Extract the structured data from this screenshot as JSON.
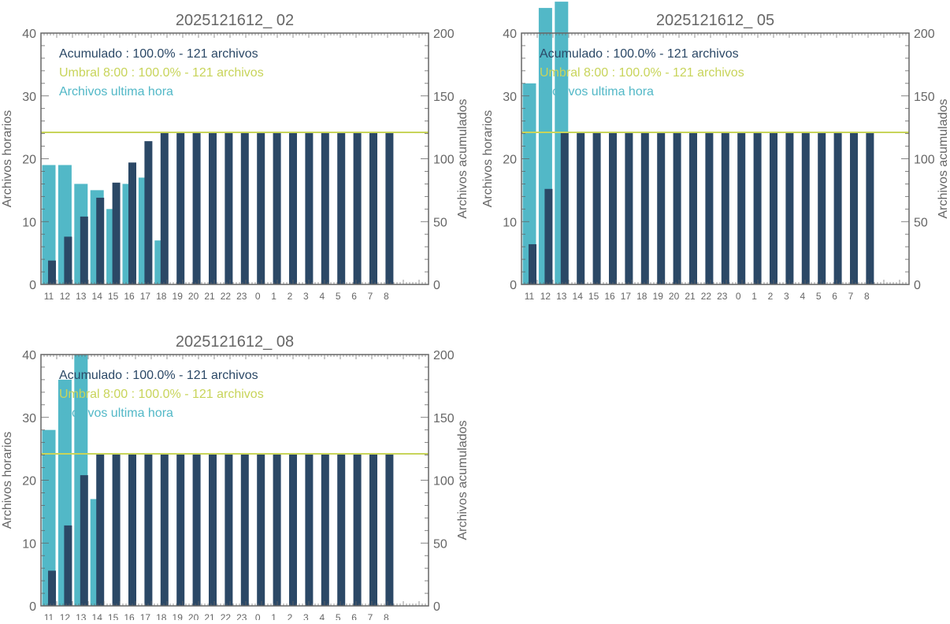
{
  "colors": {
    "hourly": "#52b8c7",
    "cumulative": "#2b4866",
    "threshold": "#c8d45a",
    "axis": "#666666"
  },
  "chart_data": [
    {
      "type": "bar",
      "title": "2025121612_ 02",
      "ylabel": "Archivos horarios",
      "y2label": "Archivos acumulados",
      "ylim": [
        0,
        40
      ],
      "y2lim": [
        0,
        200
      ],
      "yticks": [
        0,
        10,
        20,
        30,
        40
      ],
      "y2ticks": [
        0,
        50,
        100,
        150,
        200
      ],
      "categories": [
        "11",
        "12",
        "13",
        "14",
        "15",
        "16",
        "17",
        "18",
        "19",
        "20",
        "21",
        "22",
        "23",
        "0",
        "1",
        "2",
        "3",
        "4",
        "5",
        "6",
        "7",
        "8"
      ],
      "legend": [
        "Acumulado : 100.0% - 121 archivos",
        "Umbral 8:00 : 100.0% - 121 archivos",
        "Archivos ultima hora"
      ],
      "threshold": 121,
      "series": [
        {
          "name": "Archivos ultima hora",
          "axis": "left",
          "values": [
            19,
            19,
            16,
            15,
            12,
            16,
            17,
            7,
            0,
            0,
            0,
            0,
            0,
            0,
            0,
            0,
            0,
            0,
            0,
            0,
            0,
            0
          ]
        },
        {
          "name": "Acumulado",
          "axis": "right",
          "values": [
            19,
            38,
            54,
            69,
            81,
            97,
            114,
            121,
            121,
            121,
            121,
            121,
            121,
            121,
            121,
            121,
            121,
            121,
            121,
            121,
            121,
            121
          ]
        }
      ]
    },
    {
      "type": "bar",
      "title": "2025121612_ 05",
      "ylabel": "Archivos horarios",
      "y2label": "Archivos acumulados",
      "ylim": [
        0,
        40
      ],
      "y2lim": [
        0,
        200
      ],
      "yticks": [
        0,
        10,
        20,
        30,
        40
      ],
      "y2ticks": [
        0,
        50,
        100,
        150,
        200
      ],
      "categories": [
        "11",
        "12",
        "13",
        "14",
        "15",
        "16",
        "17",
        "18",
        "19",
        "20",
        "21",
        "22",
        "23",
        "0",
        "1",
        "2",
        "3",
        "4",
        "5",
        "6",
        "7",
        "8"
      ],
      "legend": [
        "Acumulado : 100.0% - 121 archivos",
        "Umbral 8:00 : 100.0% - 121 archivos",
        "Archivos ultima hora"
      ],
      "threshold": 121,
      "series": [
        {
          "name": "Archivos ultima hora",
          "axis": "left",
          "values": [
            32,
            44,
            45,
            0,
            0,
            0,
            0,
            0,
            0,
            0,
            0,
            0,
            0,
            0,
            0,
            0,
            0,
            0,
            0,
            0,
            0,
            0
          ]
        },
        {
          "name": "Acumulado",
          "axis": "right",
          "values": [
            32,
            76,
            121,
            121,
            121,
            121,
            121,
            121,
            121,
            121,
            121,
            121,
            121,
            121,
            121,
            121,
            121,
            121,
            121,
            121,
            121,
            121
          ]
        }
      ]
    },
    {
      "type": "bar",
      "title": "2025121612_ 08",
      "ylabel": "Archivos horarios",
      "y2label": "Archivos acumulados",
      "ylim": [
        0,
        40
      ],
      "y2lim": [
        0,
        200
      ],
      "yticks": [
        0,
        10,
        20,
        30,
        40
      ],
      "y2ticks": [
        0,
        50,
        100,
        150,
        200
      ],
      "categories": [
        "11",
        "12",
        "13",
        "14",
        "15",
        "16",
        "17",
        "18",
        "19",
        "20",
        "21",
        "22",
        "23",
        "0",
        "1",
        "2",
        "3",
        "4",
        "5",
        "6",
        "7",
        "8"
      ],
      "legend": [
        "Acumulado : 100.0% - 121 archivos",
        "Umbral 8:00 : 100.0% - 121 archivos",
        "Archivos ultima hora"
      ],
      "threshold": 121,
      "series": [
        {
          "name": "Archivos ultima hora",
          "axis": "left",
          "values": [
            28,
            36,
            40,
            17,
            0,
            0,
            0,
            0,
            0,
            0,
            0,
            0,
            0,
            0,
            0,
            0,
            0,
            0,
            0,
            0,
            0,
            0
          ]
        },
        {
          "name": "Acumulado",
          "axis": "right",
          "values": [
            28,
            64,
            104,
            121,
            121,
            121,
            121,
            121,
            121,
            121,
            121,
            121,
            121,
            121,
            121,
            121,
            121,
            121,
            121,
            121,
            121,
            121
          ]
        }
      ]
    }
  ]
}
